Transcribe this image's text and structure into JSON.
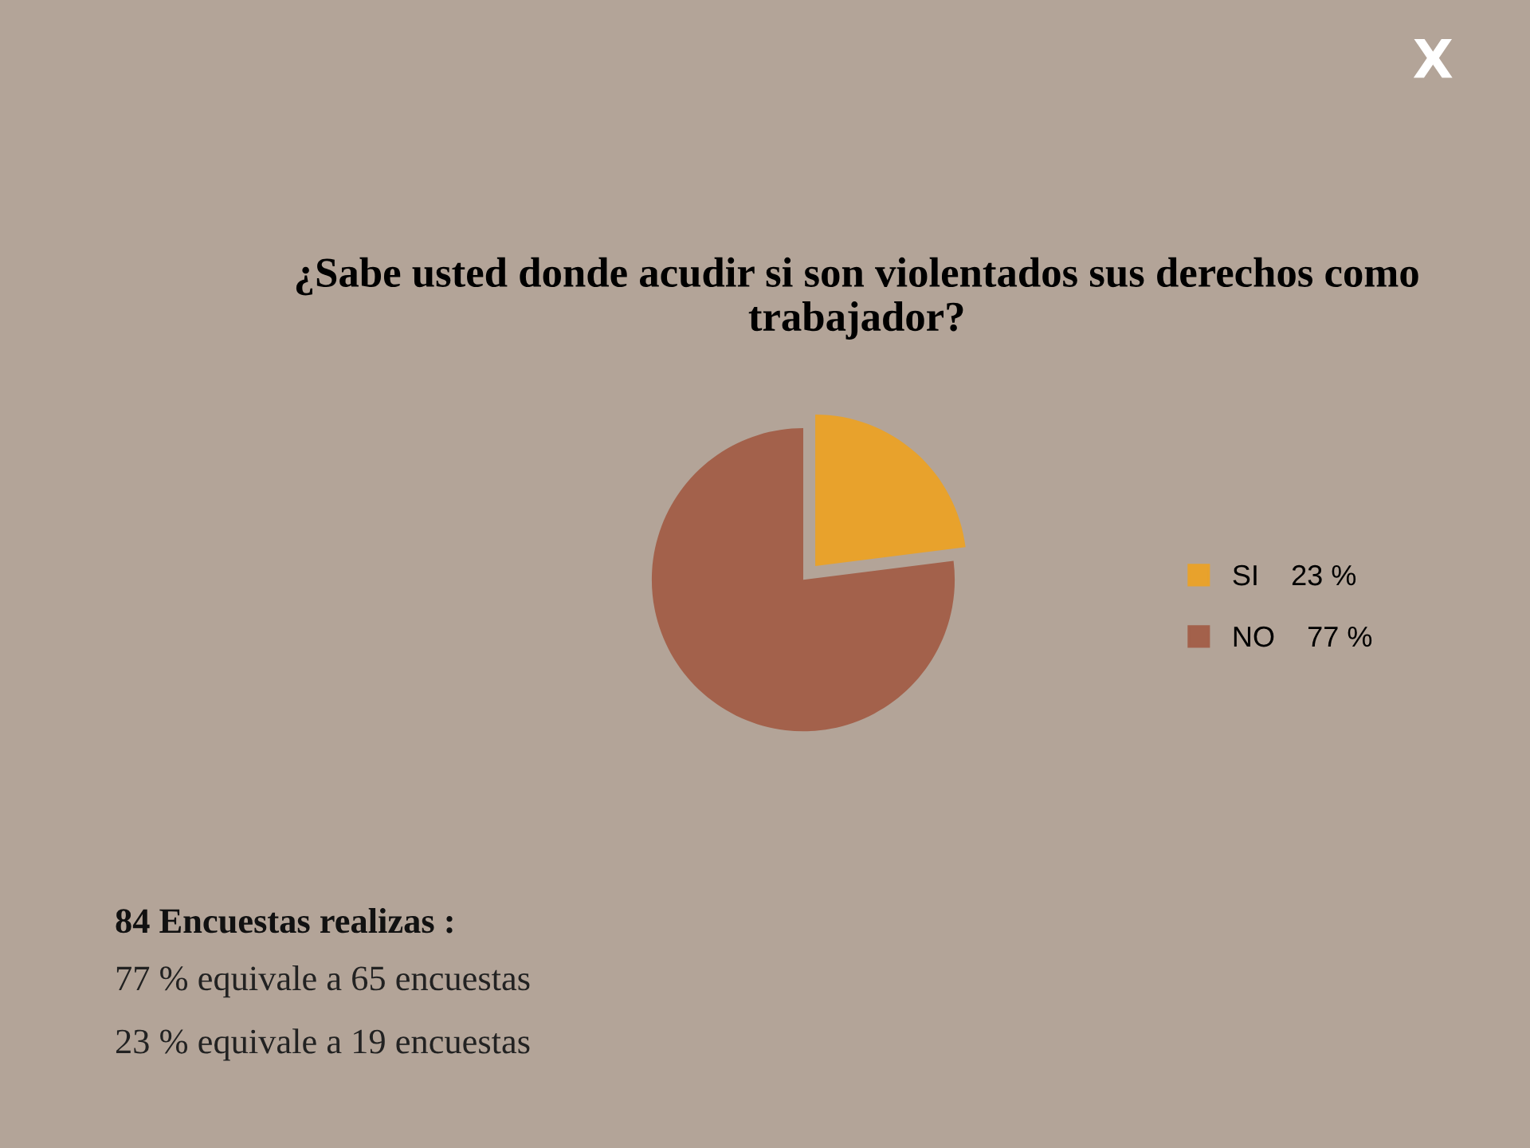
{
  "chart_data": {
    "type": "pie",
    "title": "¿Sabe usted donde acudir si son violentados sus derechos como trabajador?",
    "categories": [
      "SI",
      "NO"
    ],
    "values": [
      23,
      77
    ],
    "value_labels": [
      "23 %",
      "77 %"
    ],
    "colors": [
      "#e8a22c",
      "#a3614b"
    ],
    "legend": "right",
    "annotations": [
      "X",
      "84 Encuestas realizas :",
      "77 % equivale a 65 encuestas",
      "23 % equivale a 19 encuestas"
    ]
  }
}
